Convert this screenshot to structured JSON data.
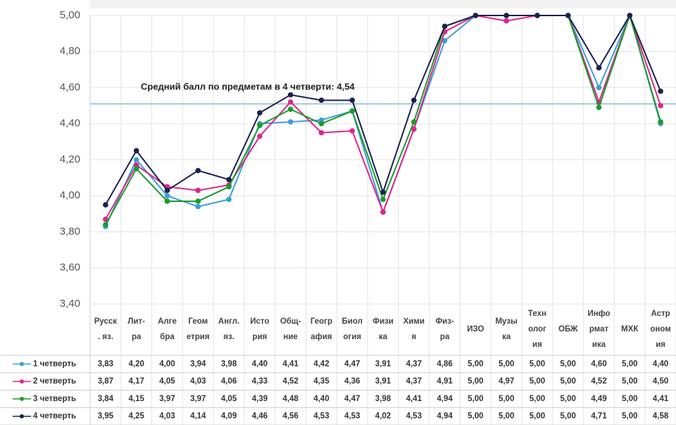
{
  "chart_data": {
    "type": "line",
    "annotation": "Средний балл по предметам в 4 четверти: 4,54",
    "reference_line": 4.51,
    "reference_color": "#8ab8d6",
    "categories": [
      [
        "Русск",
        ". яз."
      ],
      [
        "Лит-",
        "ра"
      ],
      [
        "Алге",
        "бра"
      ],
      [
        "Геом",
        "етрия"
      ],
      [
        "Англ.",
        "яз."
      ],
      [
        "Исто",
        "рия"
      ],
      [
        "Общ-",
        "ние"
      ],
      [
        "Геогр",
        "афия"
      ],
      [
        "Биол",
        "огия"
      ],
      [
        "Физи",
        "ка"
      ],
      [
        "Хими",
        "я"
      ],
      [
        "Физ-",
        "ра"
      ],
      [
        "ИЗО"
      ],
      [
        "Музы",
        "ка"
      ],
      [
        "Техн",
        "олог",
        "ия"
      ],
      [
        "ОБЖ"
      ],
      [
        "Инфо",
        "рмат",
        "ика"
      ],
      [
        "МХК"
      ],
      [
        "Астр",
        "оном",
        "ия"
      ]
    ],
    "series": [
      {
        "name": "1 четверть",
        "color": "#3a9fdb",
        "values": [
          3.83,
          4.2,
          4.0,
          3.94,
          3.98,
          4.4,
          4.41,
          4.42,
          4.47,
          3.91,
          4.37,
          4.86,
          5,
          5,
          5,
          5,
          4.6,
          5,
          4.4
        ],
        "value_labels": [
          "3,83",
          "4,20",
          "4,00",
          "3,94",
          "3,98",
          "4,40",
          "4,41",
          "4,42",
          "4,47",
          "3,91",
          "4,37",
          "4,86",
          "5,00",
          "5,00",
          "5,00",
          "5,00",
          "4,60",
          "5,00",
          "4,40"
        ]
      },
      {
        "name": "2 четверть",
        "color": "#e0248c",
        "values": [
          3.87,
          4.17,
          4.05,
          4.03,
          4.06,
          4.33,
          4.52,
          4.35,
          4.36,
          3.91,
          4.37,
          4.91,
          5,
          4.97,
          5,
          5,
          4.52,
          5,
          4.5
        ],
        "value_labels": [
          "3,87",
          "4,17",
          "4,05",
          "4,03",
          "4,06",
          "4,33",
          "4,52",
          "4,35",
          "4,36",
          "3,91",
          "4,37",
          "4,91",
          "5,00",
          "4,97",
          "5,00",
          "5,00",
          "4,52",
          "5,00",
          "4,50"
        ]
      },
      {
        "name": "3 четверть",
        "color": "#1c9a2c",
        "values": [
          3.84,
          4.15,
          3.97,
          3.97,
          4.05,
          4.39,
          4.48,
          4.4,
          4.47,
          3.98,
          4.41,
          4.94,
          5,
          5,
          5,
          5,
          4.49,
          5,
          4.41
        ],
        "value_labels": [
          "3,84",
          "4,15",
          "3,97",
          "3,97",
          "4,05",
          "4,39",
          "4,48",
          "4,40",
          "4,47",
          "3,98",
          "4,41",
          "4,94",
          "5,00",
          "5,00",
          "5,00",
          "5,00",
          "4,49",
          "5,00",
          "4,41"
        ]
      },
      {
        "name": "4 четверть",
        "color": "#1b2050",
        "values": [
          3.95,
          4.25,
          4.03,
          4.14,
          4.09,
          4.46,
          4.56,
          4.53,
          4.53,
          4.02,
          4.53,
          4.94,
          5,
          5,
          5,
          5,
          4.71,
          5,
          4.58
        ],
        "value_labels": [
          "3,95",
          "4,25",
          "4,03",
          "4,14",
          "4,09",
          "4,46",
          "4,56",
          "4,53",
          "4,53",
          "4,02",
          "4,53",
          "4,94",
          "5,00",
          "5,00",
          "5,00",
          "5,00",
          "4,71",
          "5,00",
          "4,58"
        ]
      }
    ],
    "ylim": [
      3.4,
      5.0
    ],
    "yticks": [
      {
        "value": 3.4,
        "label": "3,40"
      },
      {
        "value": 3.6,
        "label": "3,60"
      },
      {
        "value": 3.8,
        "label": "3,80"
      },
      {
        "value": 4.0,
        "label": "4,00"
      },
      {
        "value": 4.2,
        "label": "4,20"
      },
      {
        "value": 4.4,
        "label": "4,40"
      },
      {
        "value": 4.6,
        "label": "4,60"
      },
      {
        "value": 4.8,
        "label": "4,80"
      },
      {
        "value": 5.0,
        "label": "5,00"
      }
    ],
    "grid": true
  }
}
